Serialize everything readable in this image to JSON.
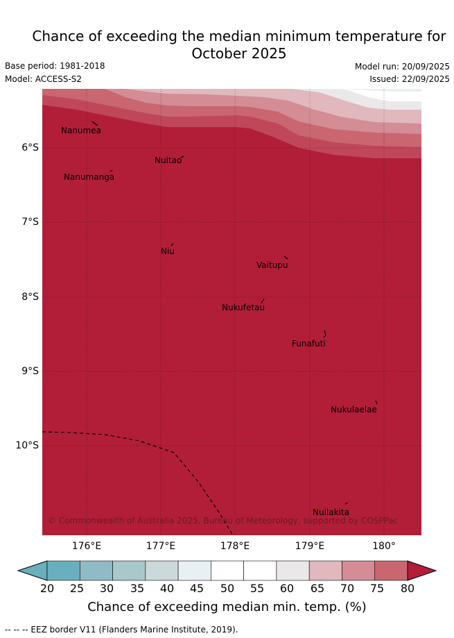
{
  "title": {
    "line1": "Chance of exceeding the median minimum temperature for",
    "line2": "October 2025"
  },
  "meta": {
    "base_period": "Base period: 1981-2018",
    "model": "Model: ACCESS-S2",
    "model_run": "Model run: 20/09/2025",
    "issued": "Issued: 22/09/2025"
  },
  "map": {
    "background_color": "#b21e38",
    "latitude_labels": [
      "6°S",
      "7°S",
      "8°S",
      "9°S",
      "10°S"
    ],
    "longitude_labels": [
      "176°E",
      "177°E",
      "178°E",
      "179°E",
      "180°"
    ],
    "islands": [
      {
        "name": "Nanumea"
      },
      {
        "name": "Nuitao"
      },
      {
        "name": "Nanumanga"
      },
      {
        "name": "Niu"
      },
      {
        "name": "Vaitupu"
      },
      {
        "name": "Nukufetau"
      },
      {
        "name": "Funafuti"
      },
      {
        "name": "Nukulaelae"
      },
      {
        "name": "Nuilakita"
      }
    ],
    "copyright": "© Commonwealth of Australia 2025, Bureau of Meteorology, supported by COSPPac"
  },
  "colorbar": {
    "ticks": [
      "20",
      "25",
      "30",
      "35",
      "40",
      "45",
      "50",
      "55",
      "60",
      "65",
      "70",
      "75",
      "80"
    ],
    "colors": [
      "#6aafbd",
      "#8fbbc6",
      "#a9c8cc",
      "#cbd9da",
      "#e9f0f3",
      "#ffffff",
      "#ffffff",
      "#ebe8ea",
      "#e0b8be",
      "#d48c95",
      "#c96670",
      "#c0475a",
      "#b21e38"
    ],
    "title": "Chance of exceeding median min. temp. (%)"
  },
  "footer": {
    "eez_note": "--  --  -- EEZ border V11 (Flanders Marine Institute, 2019)."
  }
}
